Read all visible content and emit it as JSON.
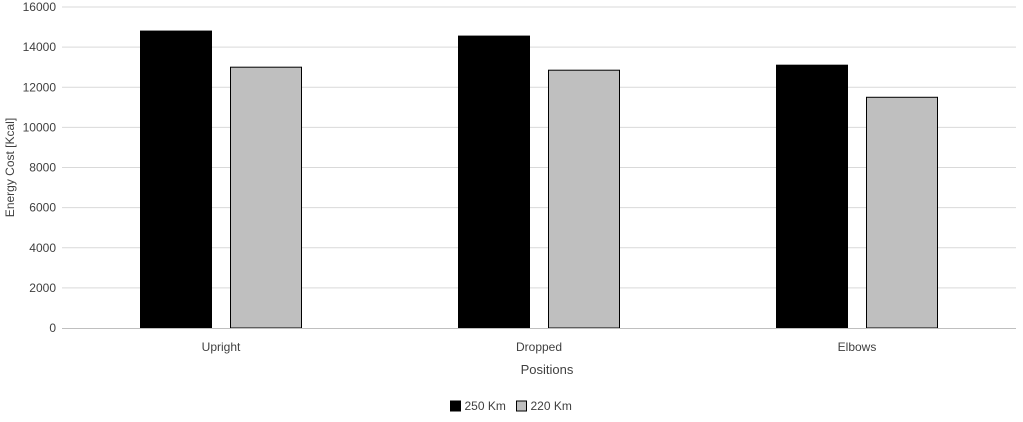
{
  "chart_data": {
    "type": "bar",
    "title": "",
    "xlabel": "Positions",
    "ylabel": "Energy Cost [Kcal]",
    "categories": [
      "Upright",
      "Dropped",
      "Elbows"
    ],
    "ylim": [
      0,
      16000
    ],
    "yticks": [
      0,
      2000,
      4000,
      6000,
      8000,
      10000,
      12000,
      14000,
      16000
    ],
    "grid": true,
    "legend_position": "bottom",
    "series": [
      {
        "name": "250 Km",
        "values": [
          14800,
          14550,
          13100
        ],
        "color": "#000000"
      },
      {
        "name": "220 Km",
        "values": [
          13000,
          12850,
          11500
        ],
        "color": "#bfbfbf"
      }
    ]
  }
}
